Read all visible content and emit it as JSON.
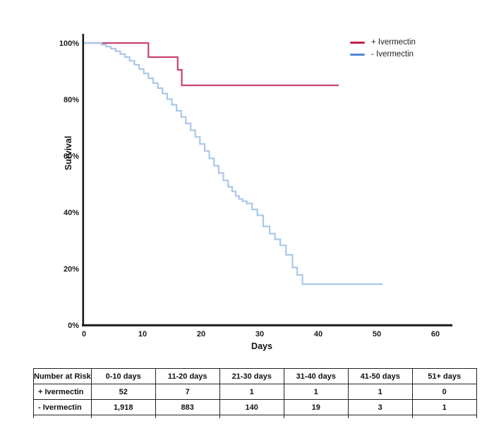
{
  "chart_data": {
    "type": "line",
    "subtype": "kaplan-meier-step-survival",
    "title": "",
    "xlabel": "Days",
    "ylabel": "Survival",
    "xlim": [
      0,
      60
    ],
    "ylim": [
      0,
      100
    ],
    "grid": false,
    "legend_position": "top-right",
    "axis_color": "#1a1a1a",
    "xticks": [
      {
        "v": 0,
        "label": "0"
      },
      {
        "v": 10,
        "label": "10"
      },
      {
        "v": 20,
        "label": "20"
      },
      {
        "v": 30,
        "label": "30"
      },
      {
        "v": 40,
        "label": "40"
      },
      {
        "v": 50,
        "label": "50"
      },
      {
        "v": 60,
        "label": "60"
      }
    ],
    "yticks": [
      {
        "v": 100,
        "label": "100%"
      },
      {
        "v": 80,
        "label": "80%"
      },
      {
        "v": 60,
        "label": "60%"
      },
      {
        "v": 40,
        "label": "40%"
      },
      {
        "v": 20,
        "label": "20%"
      },
      {
        "v": 0,
        "label": "0%"
      }
    ],
    "series": [
      {
        "name": "+ Ivermectin",
        "color": "#c8456b",
        "legend_color": "#c51e45",
        "steps": [
          [
            0,
            100
          ],
          [
            11,
            100
          ],
          [
            11,
            95
          ],
          [
            16,
            95
          ],
          [
            16,
            90.5
          ],
          [
            16.7,
            90.5
          ],
          [
            16.7,
            85
          ],
          [
            43.5,
            85
          ]
        ]
      },
      {
        "name": "- Ivermectin",
        "color": "#aac8e8",
        "legend_color": "#4e86d8",
        "steps": [
          [
            0,
            100
          ],
          [
            3,
            99.4
          ],
          [
            3.8,
            98.7
          ],
          [
            4.6,
            98
          ],
          [
            5.4,
            97.1
          ],
          [
            6.2,
            96.1
          ],
          [
            7,
            95
          ],
          [
            7.8,
            93.7
          ],
          [
            8.6,
            92.3
          ],
          [
            9.4,
            90.8
          ],
          [
            10.2,
            89.2
          ],
          [
            11,
            87.5
          ],
          [
            11.8,
            85.8
          ],
          [
            12.6,
            84
          ],
          [
            13.4,
            82.1
          ],
          [
            14.2,
            80.1
          ],
          [
            15,
            78.1
          ],
          [
            15.8,
            76
          ],
          [
            16.6,
            73.8
          ],
          [
            17.4,
            71.5
          ],
          [
            18.2,
            69.1
          ],
          [
            19,
            66.7
          ],
          [
            19.8,
            64.2
          ],
          [
            20.6,
            61.7
          ],
          [
            21.4,
            59.1
          ],
          [
            22.2,
            56.5
          ],
          [
            23,
            53.9
          ],
          [
            23.8,
            51.3
          ],
          [
            24.6,
            49
          ],
          [
            25.3,
            47.4
          ],
          [
            25.9,
            45.8
          ],
          [
            26.5,
            44.7
          ],
          [
            27.1,
            43.9
          ],
          [
            27.8,
            43.1
          ],
          [
            28.7,
            41
          ],
          [
            29.6,
            38.9
          ],
          [
            30.6,
            35
          ],
          [
            31.7,
            32.4
          ],
          [
            32.6,
            30.4
          ],
          [
            33.5,
            28.3
          ],
          [
            34.5,
            24.9
          ],
          [
            35.6,
            20.4
          ],
          [
            36.4,
            17.8
          ],
          [
            37.3,
            14.5
          ],
          [
            51,
            14.5
          ]
        ]
      }
    ]
  },
  "risk_table": {
    "headers": [
      "Number at Risk",
      "0-10 days",
      "11-20 days",
      "21-30 days",
      "31-40 days",
      "41-50 days",
      "51+ days"
    ],
    "rows": [
      {
        "label": "+ Ivermectin",
        "values": [
          "52",
          "7",
          "1",
          "1",
          "1",
          "0"
        ]
      },
      {
        "label": "- Ivermectin",
        "values": [
          "1,918",
          "883",
          "140",
          "19",
          "3",
          "1"
        ]
      }
    ]
  }
}
